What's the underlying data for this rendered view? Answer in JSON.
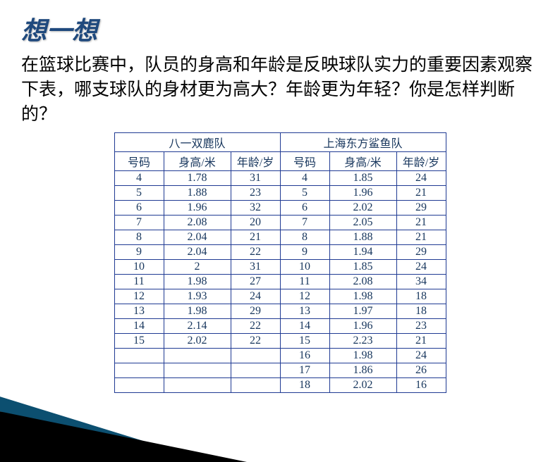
{
  "title": "想一想",
  "description": "在篮球比赛中，队员的身高和年龄是反映球队实力的重要因素观察下表，哪支球队的身材更为高大？年龄更为年轻？你是怎样判断的？",
  "team_a_name": "八一双鹿队",
  "team_b_name": "上海东方鲨鱼队",
  "columns": [
    "号码",
    "身高/米",
    "年龄/岁"
  ],
  "team_a": [
    {
      "num": "4",
      "h": "1.78",
      "a": "31"
    },
    {
      "num": "5",
      "h": "1.88",
      "a": "23"
    },
    {
      "num": "6",
      "h": "1.96",
      "a": "32"
    },
    {
      "num": "7",
      "h": "2.08",
      "a": "20"
    },
    {
      "num": "8",
      "h": "2.04",
      "a": "21"
    },
    {
      "num": "9",
      "h": "2.04",
      "a": "22"
    },
    {
      "num": "10",
      "h": "2",
      "a": "31"
    },
    {
      "num": "11",
      "h": "1.98",
      "a": "27"
    },
    {
      "num": "12",
      "h": "1.93",
      "a": "24"
    },
    {
      "num": "13",
      "h": "1.98",
      "a": "29"
    },
    {
      "num": "14",
      "h": "2.14",
      "a": "22"
    },
    {
      "num": "15",
      "h": "2.02",
      "a": "22"
    },
    {
      "num": "",
      "h": "",
      "a": ""
    },
    {
      "num": "",
      "h": "",
      "a": ""
    },
    {
      "num": "",
      "h": "",
      "a": ""
    }
  ],
  "team_b": [
    {
      "num": "4",
      "h": "1.85",
      "a": "24"
    },
    {
      "num": "5",
      "h": "1.96",
      "a": "21"
    },
    {
      "num": "6",
      "h": "2.02",
      "a": "29"
    },
    {
      "num": "7",
      "h": "2.05",
      "a": "21"
    },
    {
      "num": "8",
      "h": "1.88",
      "a": "21"
    },
    {
      "num": "9",
      "h": "1.94",
      "a": "29"
    },
    {
      "num": "10",
      "h": "1.85",
      "a": "24"
    },
    {
      "num": "11",
      "h": "2.08",
      "a": "34"
    },
    {
      "num": "12",
      "h": "1.98",
      "a": "18"
    },
    {
      "num": "13",
      "h": "1.97",
      "a": "18"
    },
    {
      "num": "14",
      "h": "1.96",
      "a": "23"
    },
    {
      "num": "15",
      "h": "2.23",
      "a": "21"
    },
    {
      "num": "16",
      "h": "1.98",
      "a": "24"
    },
    {
      "num": "17",
      "h": "1.86",
      "a": "26"
    },
    {
      "num": "18",
      "h": "2.02",
      "a": "16"
    }
  ],
  "styling": {
    "title_color": "#1f497d",
    "title_fontsize": 36,
    "desc_fontsize": 25,
    "table_border_color": "#1f3a93",
    "table_text_color": "#17365d",
    "background_color": "#ffffff",
    "triangle_colors": [
      "#0c4f70",
      "#b2d4dd",
      "#000000"
    ]
  }
}
